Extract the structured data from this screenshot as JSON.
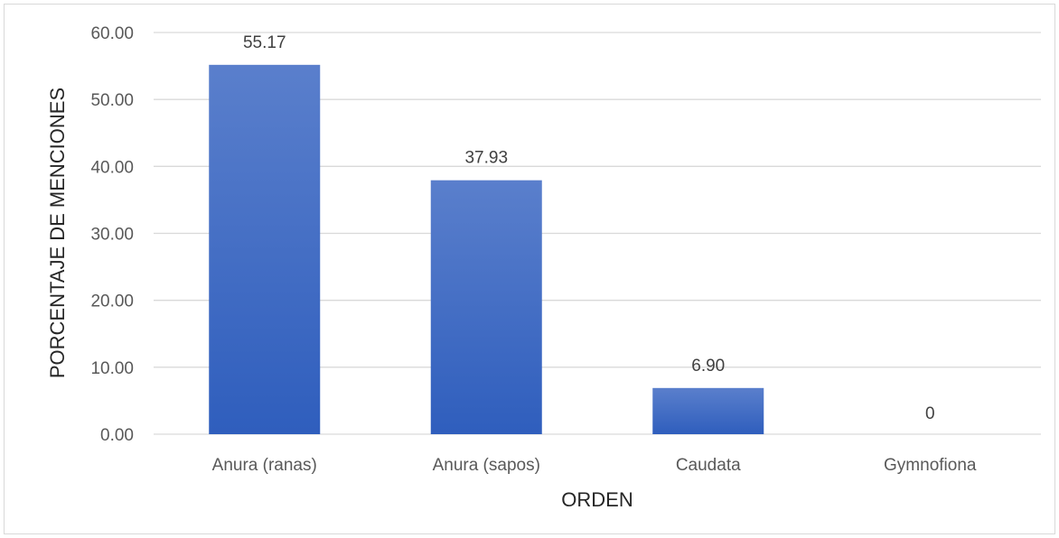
{
  "chart_data": {
    "type": "bar",
    "title": "",
    "xlabel": "ORDEN",
    "ylabel": "PORCENTAJE DE MENCIONES",
    "categories": [
      "Anura (ranas)",
      "Anura (sapos)",
      "Caudata",
      "Gymnofiona"
    ],
    "values": [
      55.17,
      37.93,
      6.9,
      0
    ],
    "data_labels": [
      "55.17",
      "37.93",
      "6.90",
      "0"
    ],
    "ylim": [
      0,
      60
    ],
    "yticks": [
      0,
      10,
      20,
      30,
      40,
      50,
      60
    ],
    "ytick_labels": [
      "0.00",
      "10.00",
      "20.00",
      "30.00",
      "40.00",
      "50.00",
      "60.00"
    ],
    "grid": true,
    "legend": "none",
    "colors": {
      "bar_top": "#5a7fcc",
      "bar_bottom": "#2f5ebd",
      "grid": "#d9d9d9",
      "tick_text": "#595959",
      "axis_title": "#262626"
    }
  }
}
